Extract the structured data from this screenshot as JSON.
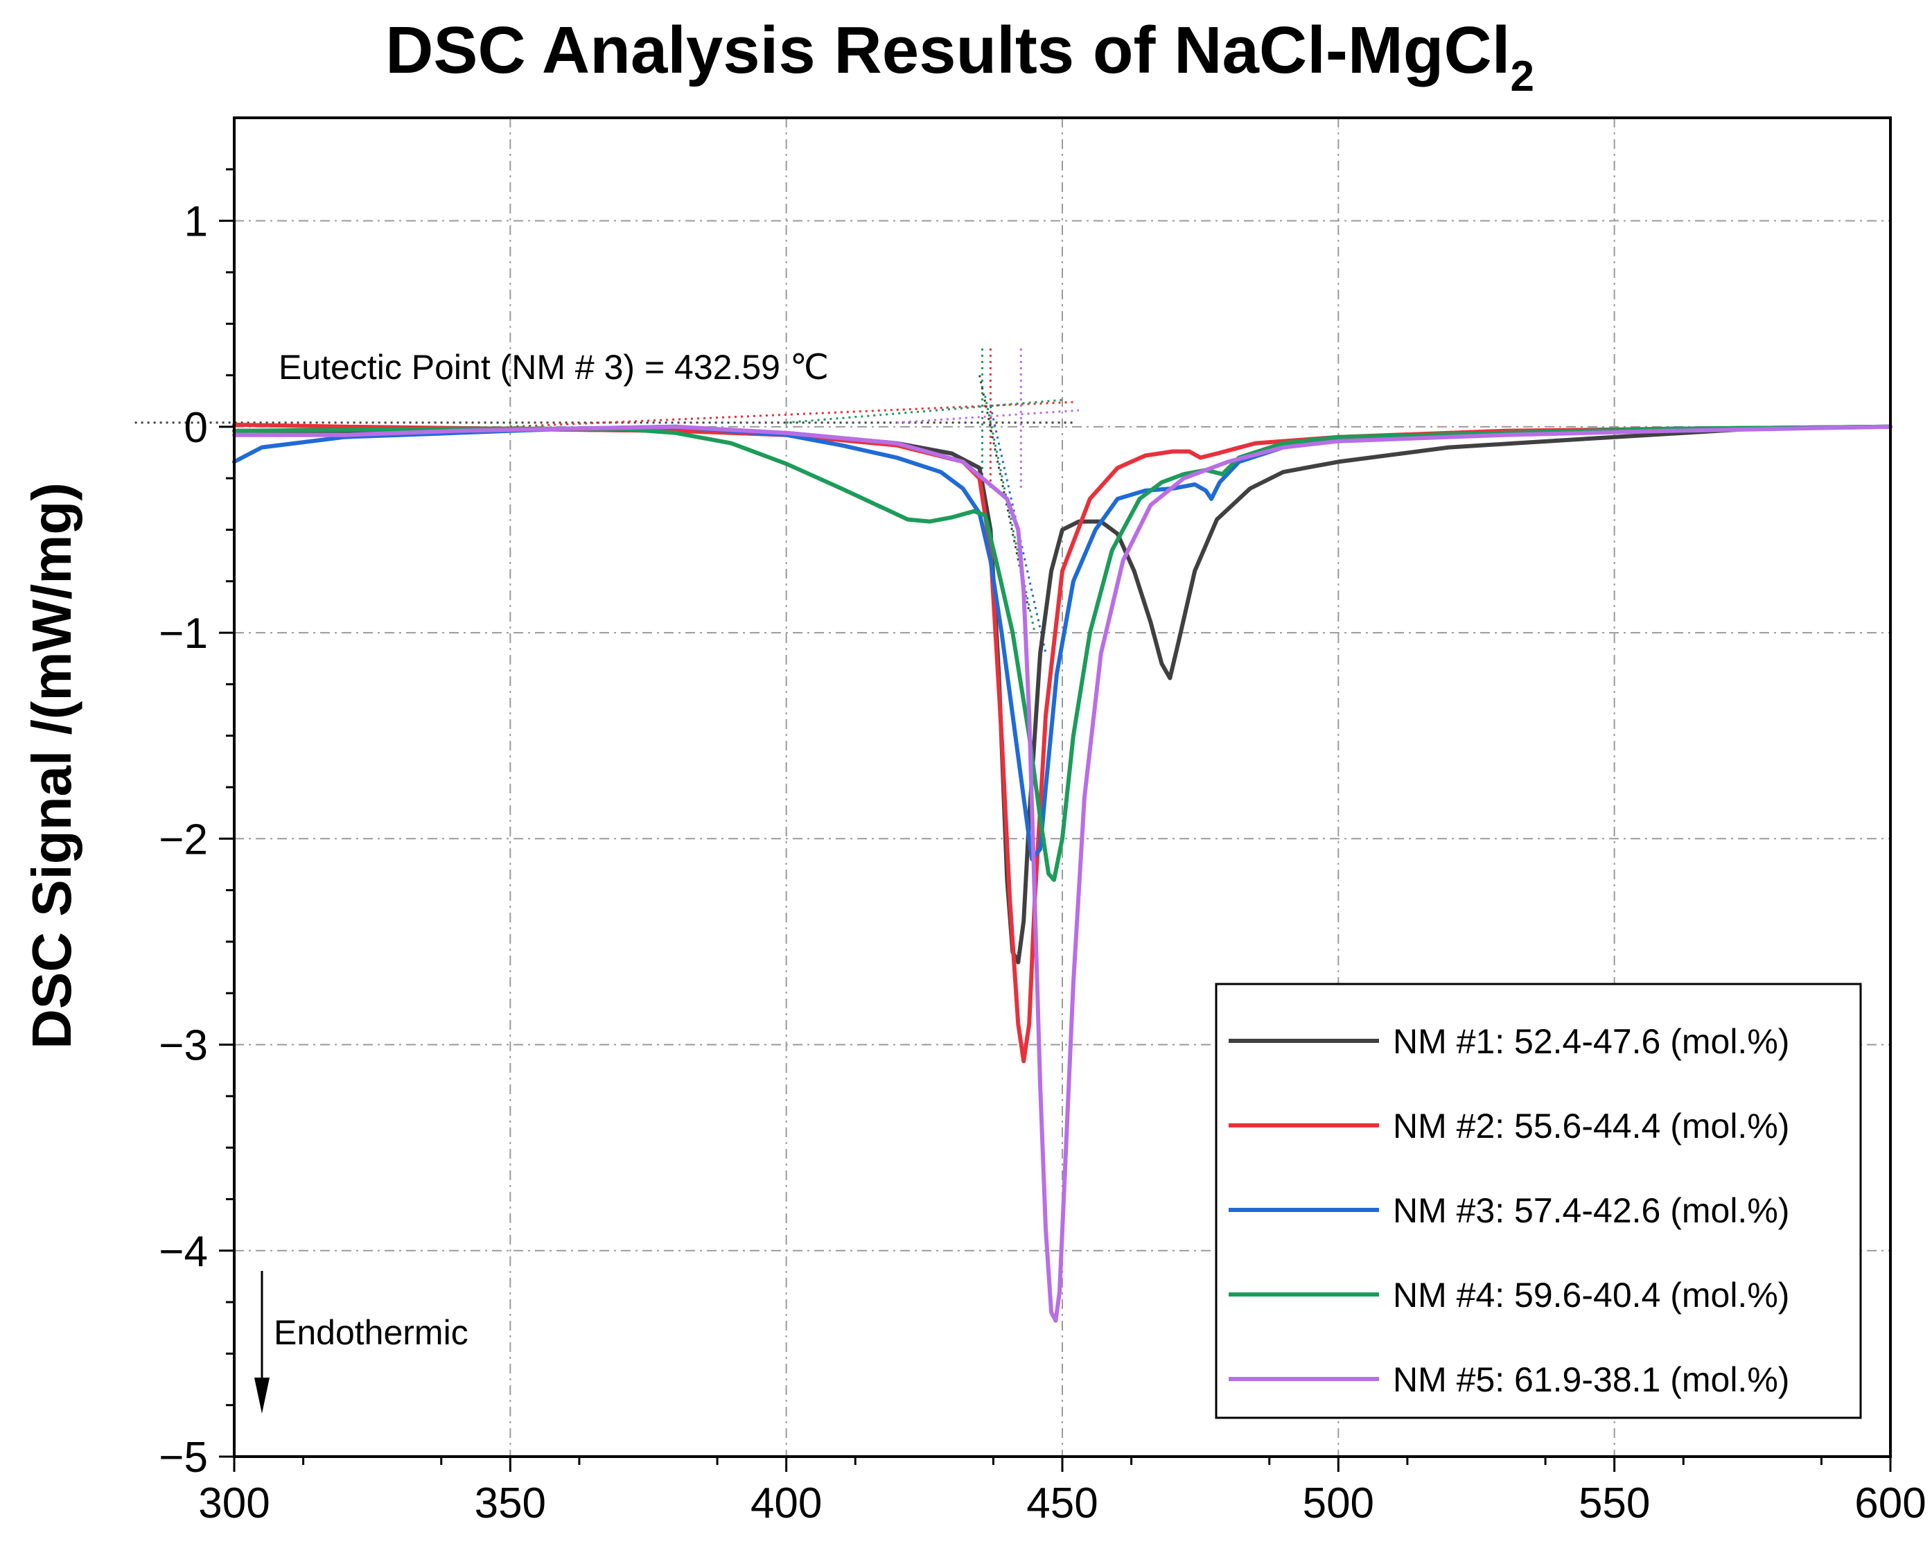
{
  "chart_data": {
    "type": "line",
    "title_main": "DSC Analysis Results of NaCl-MgCl",
    "title_subscript": "2",
    "xlabel": "",
    "ylabel": "DSC Signal /(mW/mg)",
    "xlim": [
      300,
      600
    ],
    "ylim": [
      -5,
      1.5
    ],
    "x_ticks": [
      300,
      350,
      400,
      450,
      500,
      550,
      600
    ],
    "y_ticks": [
      1,
      0,
      -1,
      -2,
      -3,
      -4,
      -5
    ],
    "y_tick_labels": [
      "1",
      "0",
      "−1",
      "−2",
      "−3",
      "−4",
      "−5"
    ],
    "grid": true,
    "legend_position": "bottom-right",
    "annotations": {
      "eutectic": "Eutectic Point (NM # 3) = 432.59 ℃",
      "endothermic": "Endothermic"
    },
    "series": [
      {
        "name": "NM #1: 52.4-47.6 (mol.%)",
        "color": "#404040",
        "points": [
          [
            300,
            -0.02
          ],
          [
            320,
            -0.02
          ],
          [
            350,
            -0.01
          ],
          [
            380,
            -0.02
          ],
          [
            400,
            -0.03
          ],
          [
            420,
            -0.08
          ],
          [
            430,
            -0.13
          ],
          [
            435,
            -0.2
          ],
          [
            437,
            -0.5
          ],
          [
            438.5,
            -1.2
          ],
          [
            440,
            -2.2
          ],
          [
            441,
            -2.55
          ],
          [
            442,
            -2.6
          ],
          [
            443,
            -2.4
          ],
          [
            444,
            -1.9
          ],
          [
            446,
            -1.1
          ],
          [
            448,
            -0.7
          ],
          [
            450,
            -0.5
          ],
          [
            453,
            -0.46
          ],
          [
            457,
            -0.46
          ],
          [
            460,
            -0.52
          ],
          [
            463,
            -0.7
          ],
          [
            466,
            -0.95
          ],
          [
            468,
            -1.15
          ],
          [
            469.5,
            -1.22
          ],
          [
            471,
            -1.05
          ],
          [
            474,
            -0.7
          ],
          [
            478,
            -0.45
          ],
          [
            484,
            -0.3
          ],
          [
            490,
            -0.22
          ],
          [
            500,
            -0.17
          ],
          [
            520,
            -0.1
          ],
          [
            550,
            -0.05
          ],
          [
            575,
            -0.01
          ],
          [
            600,
            0
          ]
        ]
      },
      {
        "name": "NM #2: 55.6-44.4 (mol.%)",
        "color": "#e8313b",
        "points": [
          [
            300,
            0.01
          ],
          [
            320,
            0
          ],
          [
            350,
            -0.01
          ],
          [
            380,
            -0.02
          ],
          [
            400,
            -0.04
          ],
          [
            420,
            -0.09
          ],
          [
            432,
            -0.17
          ],
          [
            435,
            -0.25
          ],
          [
            437,
            -0.6
          ],
          [
            439,
            -1.5
          ],
          [
            440.5,
            -2.3
          ],
          [
            442,
            -2.9
          ],
          [
            443,
            -3.08
          ],
          [
            444,
            -2.9
          ],
          [
            445,
            -2.3
          ],
          [
            447,
            -1.4
          ],
          [
            450,
            -0.7
          ],
          [
            455,
            -0.35
          ],
          [
            460,
            -0.2
          ],
          [
            465,
            -0.14
          ],
          [
            470,
            -0.12
          ],
          [
            473,
            -0.12
          ],
          [
            475,
            -0.15
          ],
          [
            478,
            -0.13
          ],
          [
            485,
            -0.08
          ],
          [
            500,
            -0.05
          ],
          [
            530,
            -0.02
          ],
          [
            560,
            -0.01
          ],
          [
            600,
            0
          ]
        ]
      },
      {
        "name": "NM #3: 57.4-42.6 (mol.%)",
        "color": "#1f6bd6",
        "points": [
          [
            300,
            -0.17
          ],
          [
            305,
            -0.1
          ],
          [
            320,
            -0.05
          ],
          [
            340,
            -0.03
          ],
          [
            360,
            -0.01
          ],
          [
            380,
            0
          ],
          [
            400,
            -0.04
          ],
          [
            410,
            -0.09
          ],
          [
            420,
            -0.15
          ],
          [
            428,
            -0.22
          ],
          [
            432,
            -0.3
          ],
          [
            435,
            -0.42
          ],
          [
            437,
            -0.65
          ],
          [
            439,
            -1.0
          ],
          [
            441,
            -1.4
          ],
          [
            443,
            -1.8
          ],
          [
            444.5,
            -2.1
          ],
          [
            446,
            -2.05
          ],
          [
            447,
            -1.75
          ],
          [
            449,
            -1.2
          ],
          [
            452,
            -0.75
          ],
          [
            456,
            -0.5
          ],
          [
            460,
            -0.35
          ],
          [
            465,
            -0.31
          ],
          [
            470,
            -0.3
          ],
          [
            474,
            -0.28
          ],
          [
            476,
            -0.31
          ],
          [
            477,
            -0.35
          ],
          [
            478.5,
            -0.27
          ],
          [
            482,
            -0.17
          ],
          [
            490,
            -0.1
          ],
          [
            500,
            -0.06
          ],
          [
            530,
            -0.03
          ],
          [
            560,
            -0.01
          ],
          [
            600,
            0
          ]
        ]
      },
      {
        "name": "NM #4: 59.6-40.4 (mol.%)",
        "color": "#1c9c5a",
        "points": [
          [
            300,
            -0.02
          ],
          [
            340,
            -0.01
          ],
          [
            370,
            -0.01
          ],
          [
            380,
            -0.03
          ],
          [
            390,
            -0.08
          ],
          [
            400,
            -0.18
          ],
          [
            410,
            -0.3
          ],
          [
            418,
            -0.4
          ],
          [
            422,
            -0.45
          ],
          [
            426,
            -0.46
          ],
          [
            430,
            -0.44
          ],
          [
            434,
            -0.41
          ],
          [
            436,
            -0.43
          ],
          [
            438,
            -0.65
          ],
          [
            441,
            -1.0
          ],
          [
            444,
            -1.5
          ],
          [
            446,
            -1.9
          ],
          [
            447.5,
            -2.17
          ],
          [
            448.5,
            -2.2
          ],
          [
            450,
            -2.0
          ],
          [
            452,
            -1.5
          ],
          [
            455,
            -1.0
          ],
          [
            459,
            -0.6
          ],
          [
            464,
            -0.35
          ],
          [
            468,
            -0.27
          ],
          [
            472,
            -0.23
          ],
          [
            476,
            -0.21
          ],
          [
            479,
            -0.23
          ],
          [
            482,
            -0.15
          ],
          [
            490,
            -0.08
          ],
          [
            500,
            -0.05
          ],
          [
            530,
            -0.03
          ],
          [
            560,
            -0.01
          ],
          [
            600,
            0
          ]
        ]
      },
      {
        "name": "NM #5: 61.9-38.1 (mol.%)",
        "color": "#b86ee6",
        "points": [
          [
            300,
            -0.04
          ],
          [
            320,
            -0.04
          ],
          [
            340,
            -0.02
          ],
          [
            360,
            -0.01
          ],
          [
            380,
            0
          ],
          [
            400,
            -0.03
          ],
          [
            420,
            -0.08
          ],
          [
            432,
            -0.17
          ],
          [
            440,
            -0.35
          ],
          [
            442,
            -0.5
          ],
          [
            443,
            -0.8
          ],
          [
            444,
            -1.4
          ],
          [
            445,
            -2.3
          ],
          [
            446,
            -3.2
          ],
          [
            447,
            -3.9
          ],
          [
            448,
            -4.3
          ],
          [
            448.8,
            -4.34
          ],
          [
            449.5,
            -4.2
          ],
          [
            450.5,
            -3.6
          ],
          [
            452,
            -2.7
          ],
          [
            454,
            -1.8
          ],
          [
            457,
            -1.1
          ],
          [
            461,
            -0.65
          ],
          [
            466,
            -0.38
          ],
          [
            472,
            -0.25
          ],
          [
            480,
            -0.17
          ],
          [
            490,
            -0.1
          ],
          [
            500,
            -0.07
          ],
          [
            530,
            -0.04
          ],
          [
            560,
            -0.02
          ],
          [
            600,
            0
          ]
        ]
      }
    ]
  }
}
